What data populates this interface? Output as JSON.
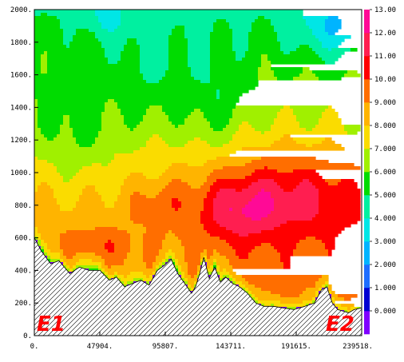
{
  "chart_data": {
    "type": "heatmap",
    "title": "",
    "xlabel": "",
    "ylabel": "",
    "x_range": [
      0,
      239518
    ],
    "y_range": [
      0,
      2000
    ],
    "x_ticks": [
      "0.",
      "47904.",
      "95807.",
      "143711.",
      "191615.",
      "239518."
    ],
    "x_tick_values": [
      0,
      47904,
      95807,
      143711,
      191615,
      239518
    ],
    "y_ticks": [
      "0.",
      "200.",
      "400.",
      "600.",
      "800.",
      "1000.",
      "1200.",
      "1400.",
      "1600.",
      "1800.",
      "2000."
    ],
    "y_tick_values": [
      0,
      200,
      400,
      600,
      800,
      1000,
      1200,
      1400,
      1600,
      1800,
      2000
    ],
    "colorbar": {
      "levels": [
        -1,
        0,
        1,
        2,
        3,
        4,
        5,
        6,
        7,
        8,
        9,
        10,
        11,
        12,
        13,
        14
      ],
      "labels": [
        "0.000",
        "1.000",
        "2.000",
        "3.000",
        "4.000",
        "5.000",
        "6.000",
        "7.000",
        "8.000",
        "9.000",
        "10.00",
        "11.00",
        "12.00",
        "13.00"
      ],
      "label_values": [
        0,
        1,
        2,
        3,
        4,
        5,
        6,
        7,
        8,
        9,
        10,
        11,
        12,
        13
      ],
      "colors": [
        "#7f00ff",
        "#0000d2",
        "#1e6eff",
        "#00b4ff",
        "#00e6e6",
        "#00f0a0",
        "#00dc00",
        "#a0f000",
        "#fadc00",
        "#ffb400",
        "#ff6e00",
        "#ff0000",
        "#ff1e50",
        "#ff0a96"
      ]
    },
    "terrain": {
      "x": [
        0,
        5000,
        12000,
        18000,
        26000,
        33000,
        40000,
        48000,
        55000,
        60000,
        66000,
        72000,
        78000,
        84000,
        90000,
        95000,
        100000,
        105000,
        110000,
        115000,
        118000,
        121000,
        124000,
        128000,
        132000,
        136000,
        140000,
        145000,
        150000,
        156000,
        162000,
        168000,
        175000,
        182000,
        190000,
        198000,
        205000,
        210000,
        214000,
        218000,
        222000,
        226000,
        230000,
        234000,
        239518
      ],
      "y": [
        600,
        520,
        440,
        460,
        380,
        420,
        400,
        400,
        340,
        360,
        300,
        320,
        340,
        310,
        400,
        430,
        470,
        380,
        320,
        260,
        300,
        380,
        480,
        350,
        420,
        330,
        360,
        320,
        300,
        260,
        200,
        180,
        180,
        170,
        160,
        180,
        200,
        280,
        300,
        200,
        160,
        150,
        140,
        160,
        170
      ]
    },
    "annotations": [
      "E1",
      "E2"
    ]
  }
}
